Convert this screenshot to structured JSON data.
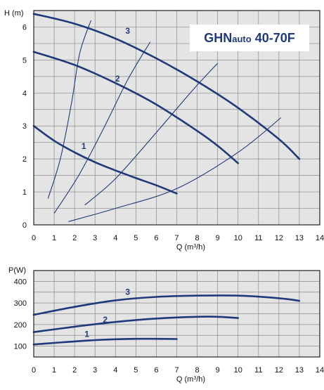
{
  "chart_data": [
    {
      "type": "line",
      "title": "GHNauto 40-70F",
      "title_parts": {
        "brand": "GHN",
        "suffix": "auto",
        "model": " 40-70F"
      },
      "ylabel": "H (m)",
      "xlabel": "Q (m³/h)",
      "xlabel_parts": {
        "pre": "Q (m",
        "sup": "3",
        "post": "/h)"
      },
      "xlim": [
        0,
        14
      ],
      "ylim": [
        0,
        6.5
      ],
      "xticks": [
        0,
        1,
        2,
        3,
        4,
        5,
        6,
        7,
        8,
        9,
        10,
        11,
        12,
        13,
        14
      ],
      "yticks": [
        0,
        1,
        2,
        3,
        4,
        5,
        6
      ],
      "grid": true,
      "series": [
        {
          "name": "1",
          "points": [
            [
              0,
              3.0
            ],
            [
              1,
              2.55
            ],
            [
              2,
              2.2
            ],
            [
              3,
              1.9
            ],
            [
              4,
              1.65
            ],
            [
              5,
              1.42
            ],
            [
              6,
              1.2
            ],
            [
              7,
              0.95
            ]
          ]
        },
        {
          "name": "2",
          "points": [
            [
              0,
              5.25
            ],
            [
              2,
              4.85
            ],
            [
              4,
              4.3
            ],
            [
              6,
              3.65
            ],
            [
              8,
              2.85
            ],
            [
              9,
              2.4
            ],
            [
              10,
              1.87
            ]
          ]
        },
        {
          "name": "3",
          "points": [
            [
              0,
              6.4
            ],
            [
              2,
              6.1
            ],
            [
              4,
              5.65
            ],
            [
              6,
              5.05
            ],
            [
              8,
              4.35
            ],
            [
              10,
              3.55
            ],
            [
              12,
              2.6
            ],
            [
              13,
              2.0
            ]
          ]
        }
      ],
      "system_curves": [
        {
          "points": [
            [
              0.7,
              0.8
            ],
            [
              1.3,
              2.0
            ],
            [
              1.85,
              3.7
            ],
            [
              2.25,
              5.2
            ],
            [
              2.8,
              6.2
            ]
          ]
        },
        {
          "points": [
            [
              1.0,
              0.35
            ],
            [
              2.2,
              1.5
            ],
            [
              3.4,
              2.9
            ],
            [
              4.6,
              4.4
            ],
            [
              5.7,
              5.55
            ]
          ]
        },
        {
          "points": [
            [
              2.5,
              0.6
            ],
            [
              4.0,
              1.4
            ],
            [
              6.0,
              2.8
            ],
            [
              7.8,
              4.1
            ],
            [
              9.0,
              4.9
            ]
          ]
        },
        {
          "points": [
            [
              1.7,
              0.1
            ],
            [
              4.0,
              0.5
            ],
            [
              7.0,
              1.1
            ],
            [
              10.0,
              2.2
            ],
            [
              12.1,
              3.25
            ]
          ]
        }
      ]
    },
    {
      "type": "line",
      "ylabel": "P(W)",
      "xlabel": "Q (m³/h)",
      "xlabel_parts": {
        "pre": "Q (m",
        "sup": "3",
        "post": "/h)"
      },
      "xlim": [
        0,
        14
      ],
      "ylim": [
        50,
        450
      ],
      "xticks": [
        0,
        1,
        2,
        3,
        4,
        5,
        6,
        7,
        8,
        9,
        10,
        11,
        12,
        13,
        14
      ],
      "yticks": [
        100,
        200,
        300,
        400
      ],
      "grid": true,
      "series": [
        {
          "name": "1",
          "points": [
            [
              0,
              108
            ],
            [
              1,
              115
            ],
            [
              2,
              122
            ],
            [
              3,
              128
            ],
            [
              4,
              132
            ],
            [
              5,
              134
            ],
            [
              6,
              134
            ],
            [
              7,
              133
            ]
          ]
        },
        {
          "name": "2",
          "points": [
            [
              0,
              165
            ],
            [
              2,
              190
            ],
            [
              4,
              212
            ],
            [
              6,
              228
            ],
            [
              8,
              236
            ],
            [
              9,
              236
            ],
            [
              10,
              230
            ]
          ]
        },
        {
          "name": "3",
          "points": [
            [
              0,
              245
            ],
            [
              2,
              282
            ],
            [
              4,
              312
            ],
            [
              6,
              328
            ],
            [
              8,
              334
            ],
            [
              10,
              334
            ],
            [
              12,
              322
            ],
            [
              13,
              310
            ]
          ]
        }
      ]
    }
  ],
  "colors": {
    "curve": "#1f3a7a",
    "grid": "#8a8a8a",
    "frame": "#222222",
    "plot_bg": "#e4e4e4",
    "title_box_bg": "#ffffff"
  }
}
